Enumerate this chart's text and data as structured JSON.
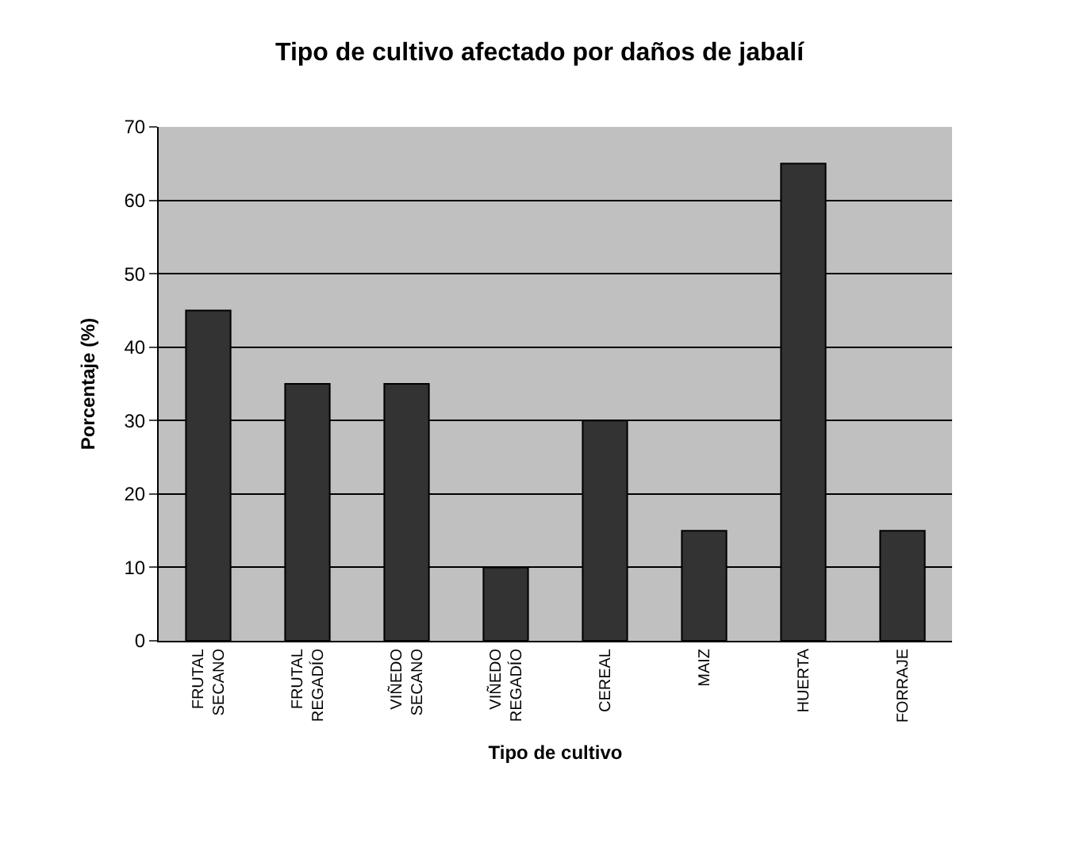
{
  "chart_data": {
    "type": "bar",
    "title": "Tipo de cultivo afectado por daños de jabalí",
    "xlabel": "Tipo de cultivo",
    "ylabel": "Porcentaje (%)",
    "categories": [
      "FRUTAL\nSECANO",
      "FRUTAL\nREGADÍO",
      "VIÑEDO\nSECANO",
      "VIÑEDO\nREGADÍO",
      "CEREAL",
      "MAIZ",
      "HUERTA",
      "FORRAJE"
    ],
    "values": [
      45,
      35,
      35,
      10,
      30,
      15,
      65,
      15
    ],
    "color": "#333333",
    "ylim": [
      0,
      70
    ],
    "yticks": [
      0,
      10,
      20,
      30,
      40,
      50,
      60,
      70
    ],
    "grid": "y"
  }
}
